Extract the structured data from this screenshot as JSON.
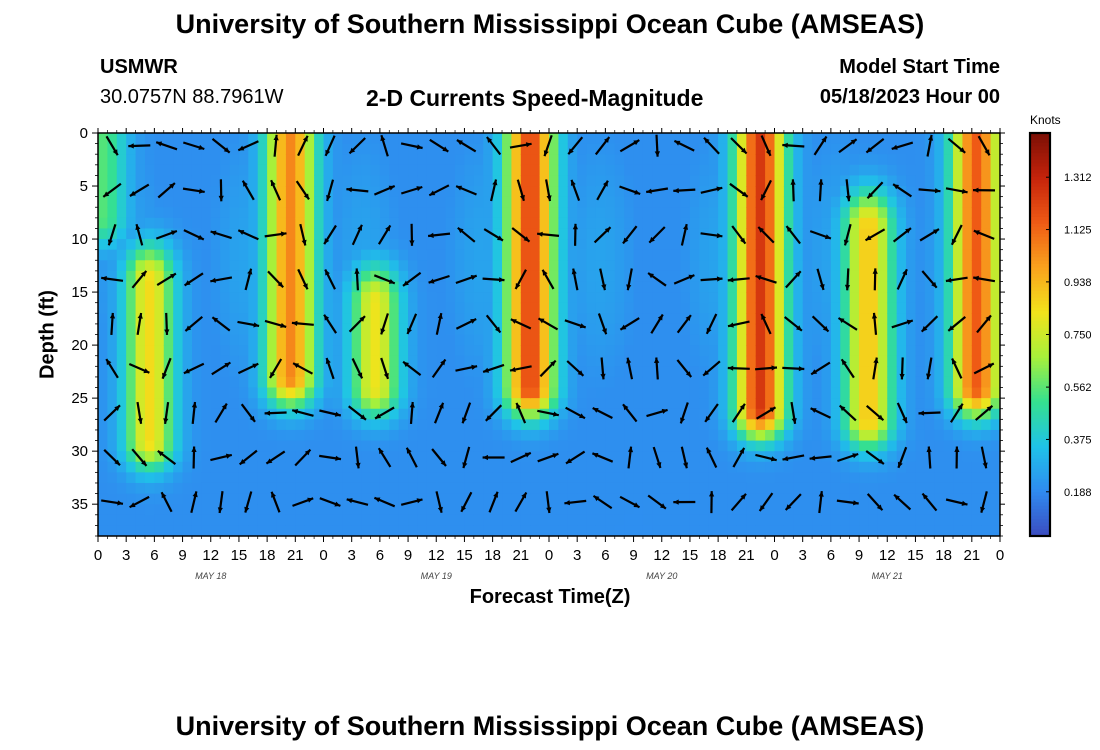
{
  "header": {
    "title": "University of Southern Mississippi Ocean Cube (AMSEAS)",
    "station_id": "USMWR",
    "coordinates": "30.0757N  88.7961W",
    "plot_name": "2-D Currents Speed-Magnitude",
    "model_start_label": "Model Start Time",
    "model_start_value": "05/18/2023 Hour 00"
  },
  "footer": {
    "title": "University of Southern Mississippi Ocean Cube (AMSEAS)"
  },
  "chart_data": {
    "type": "heatmap",
    "title": "2-D Currents Speed-Magnitude",
    "xlabel": "Forecast Time(Z)",
    "ylabel": "Depth (ft)",
    "x_ticks": [
      "0",
      "3",
      "6",
      "9",
      "12",
      "15",
      "18",
      "21",
      "0",
      "3",
      "6",
      "9",
      "12",
      "15",
      "18",
      "21",
      "0",
      "3",
      "6",
      "9",
      "12",
      "15",
      "18",
      "21",
      "0",
      "3",
      "6",
      "9",
      "12",
      "15",
      "18",
      "21",
      "0"
    ],
    "x_tick_hours": [
      0,
      3,
      6,
      9,
      12,
      15,
      18,
      21,
      24,
      27,
      30,
      33,
      36,
      39,
      42,
      45,
      48,
      51,
      54,
      57,
      60,
      63,
      66,
      69,
      72,
      75,
      78,
      81,
      84,
      87,
      90,
      93,
      96
    ],
    "xlim_hours": [
      0,
      96
    ],
    "date_labels": [
      {
        "label": "MAY 18",
        "hour": 12
      },
      {
        "label": "MAY 19",
        "hour": 36
      },
      {
        "label": "MAY 20",
        "hour": 60
      },
      {
        "label": "MAY 21",
        "hour": 84
      }
    ],
    "y_ticks": [
      "0",
      "5",
      "10",
      "15",
      "20",
      "25",
      "30",
      "35"
    ],
    "y_tick_values": [
      0,
      5,
      10,
      15,
      20,
      25,
      30,
      35
    ],
    "ylim": [
      38,
      0
    ],
    "colorbar": {
      "title": "Knots",
      "ticks": [
        "1.312",
        "1.125",
        "0.938",
        "0.750",
        "0.562",
        "0.375",
        "0.188"
      ],
      "tick_values": [
        1.312,
        1.125,
        0.938,
        0.75,
        0.562,
        0.375,
        0.188
      ],
      "range": [
        0.03,
        1.47
      ],
      "colors": [
        "#3b4cc0",
        "#2f8bf0",
        "#1fc3e8",
        "#35e08f",
        "#a8f03a",
        "#f2e31b",
        "#f9a21d",
        "#ef5a15",
        "#c5230b",
        "#7a0f05"
      ]
    },
    "speed_peaks": [
      {
        "hour": 0.5,
        "depth_min": 0,
        "depth_max": 8,
        "speed": 0.55
      },
      {
        "hour": 5.5,
        "depth_min": 14,
        "depth_max": 29,
        "speed": 0.85
      },
      {
        "hour": 20.5,
        "depth_min": 0,
        "depth_max": 23,
        "speed": 1.05
      },
      {
        "hour": 29.5,
        "depth_min": 16,
        "depth_max": 24,
        "speed": 0.82
      },
      {
        "hour": 46,
        "depth_min": 0,
        "depth_max": 24,
        "speed": 1.2
      },
      {
        "hour": 70.5,
        "depth_min": 0,
        "depth_max": 26,
        "speed": 1.25
      },
      {
        "hour": 82,
        "depth_min": 9,
        "depth_max": 27,
        "speed": 0.9
      },
      {
        "hour": 93.5,
        "depth_min": 0,
        "depth_max": 24,
        "speed": 1.15
      }
    ],
    "annotation": "current direction vectors (black arrows) overlaid on speed field"
  }
}
